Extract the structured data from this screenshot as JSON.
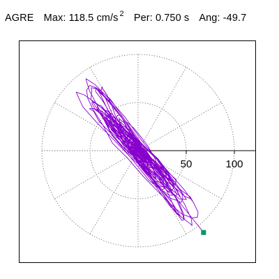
{
  "header": {
    "station": "AGRE",
    "max_label": "Max:",
    "max_value": "118.5 cm/s",
    "max_exponent": "2",
    "per_label": "Per:",
    "per_value": "0.750 s",
    "ang_label": "Ang:",
    "ang_value": "-49.7"
  },
  "colors": {
    "trace": "#8800cc",
    "end_marker": "#009966",
    "grid": "#555555",
    "frame": "#000000"
  },
  "chart_data": {
    "type": "polar-particle-motion",
    "units": "cm/s^2",
    "max_amplitude": 118.5,
    "period_s": 0.75,
    "angle_deg": -49.7,
    "rings": [
      50,
      100
    ],
    "ring_labels": [
      "50",
      "100"
    ],
    "spoke_step_deg": 30,
    "end_point": [
      68,
      -85
    ]
  }
}
